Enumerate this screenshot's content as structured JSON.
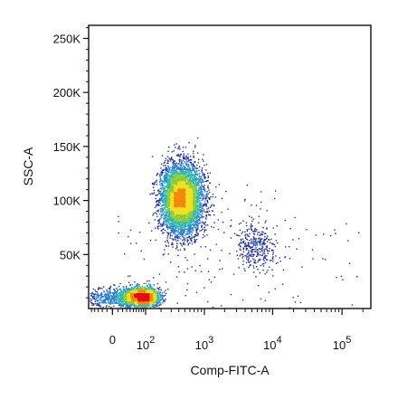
{
  "chart_data": {
    "type": "scatter",
    "subtype": "flow-cytometry density dot plot",
    "xlabel": "Comp-FITC-A",
    "ylabel": "SSC-A",
    "x_scale": "biexponential",
    "x_ticks": [
      {
        "value": 0,
        "base": "0",
        "exp": ""
      },
      {
        "value": 100,
        "base": "10",
        "exp": "2"
      },
      {
        "value": 1000,
        "base": "10",
        "exp": "3"
      },
      {
        "value": 10000,
        "base": "10",
        "exp": "4"
      },
      {
        "value": 100000,
        "base": "10",
        "exp": "5"
      }
    ],
    "y_ticks": [
      {
        "value": 50000,
        "label": "50K"
      },
      {
        "value": 100000,
        "label": "100K"
      },
      {
        "value": 150000,
        "label": "150K"
      },
      {
        "value": 200000,
        "label": "200K"
      },
      {
        "value": 250000,
        "label": "250K"
      }
    ],
    "ylim": [
      0,
      262144
    ],
    "grid": false,
    "legend": "none",
    "color_scale": [
      "#1f2a9a",
      "#2a7fd0",
      "#2fb8b0",
      "#8ccc3c",
      "#f0e020",
      "#f08a10",
      "#e01010"
    ],
    "populations": [
      {
        "id": "debris",
        "x_center": 70,
        "y_center": 11000,
        "x_spread_decades": 0.3,
        "y_spread": 4500,
        "events": 2600
      },
      {
        "id": "main",
        "x_center": 430,
        "y_center": 102000,
        "x_spread_decades": 0.17,
        "y_spread": 16000,
        "events": 5200
      },
      {
        "id": "fitc-positive",
        "x_center": 5500,
        "y_center": 58000,
        "x_spread_decades": 0.14,
        "y_spread": 10000,
        "events": 320
      },
      {
        "id": "scattered",
        "x_center": 2000,
        "y_center": 50000,
        "x_spread_decades": 1.1,
        "y_spread": 35000,
        "events": 200
      }
    ]
  }
}
